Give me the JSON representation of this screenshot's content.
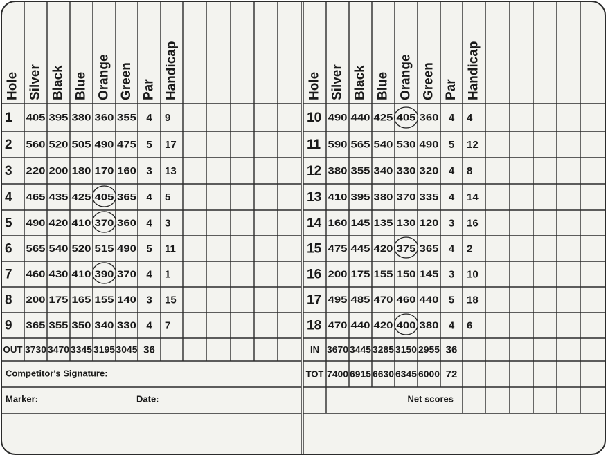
{
  "front": {
    "headers": [
      "Hole",
      "Silver",
      "Black",
      "Blue",
      "Orange",
      "Green",
      "Par",
      "Handicap"
    ],
    "rows": [
      [
        1,
        405,
        395,
        380,
        360,
        355,
        4,
        9
      ],
      [
        2,
        560,
        520,
        505,
        490,
        475,
        5,
        17
      ],
      [
        3,
        220,
        200,
        180,
        170,
        160,
        3,
        13
      ],
      [
        4,
        465,
        435,
        425,
        405,
        365,
        4,
        5
      ],
      [
        5,
        490,
        420,
        410,
        370,
        360,
        4,
        3
      ],
      [
        6,
        565,
        540,
        520,
        515,
        490,
        5,
        11
      ],
      [
        7,
        460,
        430,
        410,
        390,
        370,
        4,
        1
      ],
      [
        8,
        200,
        175,
        165,
        155,
        140,
        3,
        15
      ],
      [
        9,
        365,
        355,
        350,
        340,
        330,
        4,
        7
      ]
    ],
    "total": [
      "OUT",
      3730,
      3470,
      3345,
      3195,
      3045,
      36
    ]
  },
  "back": {
    "headers": [
      "Hole",
      "Silver",
      "Black",
      "Blue",
      "Orange",
      "Green",
      "Par",
      "Handicap"
    ],
    "rows": [
      [
        10,
        490,
        440,
        425,
        405,
        360,
        4,
        4
      ],
      [
        11,
        590,
        565,
        540,
        530,
        490,
        5,
        12
      ],
      [
        12,
        380,
        355,
        340,
        330,
        320,
        4,
        8
      ],
      [
        13,
        410,
        395,
        380,
        370,
        335,
        4,
        14
      ],
      [
        14,
        160,
        145,
        135,
        130,
        120,
        3,
        16
      ],
      [
        15,
        475,
        445,
        420,
        375,
        365,
        4,
        2
      ],
      [
        16,
        200,
        175,
        155,
        150,
        145,
        3,
        10
      ],
      [
        17,
        495,
        485,
        470,
        460,
        440,
        5,
        18
      ],
      [
        18,
        470,
        440,
        420,
        400,
        380,
        4,
        6
      ]
    ],
    "total": [
      "IN",
      3670,
      3445,
      3285,
      3150,
      2955,
      36
    ],
    "grand_total": [
      "TOT",
      7400,
      6915,
      6630,
      6345,
      6000,
      72
    ]
  },
  "labels": {
    "signature": "Competitor's Signature:",
    "marker": "Marker:",
    "date": "Date:",
    "net_scores": "Net scores"
  }
}
